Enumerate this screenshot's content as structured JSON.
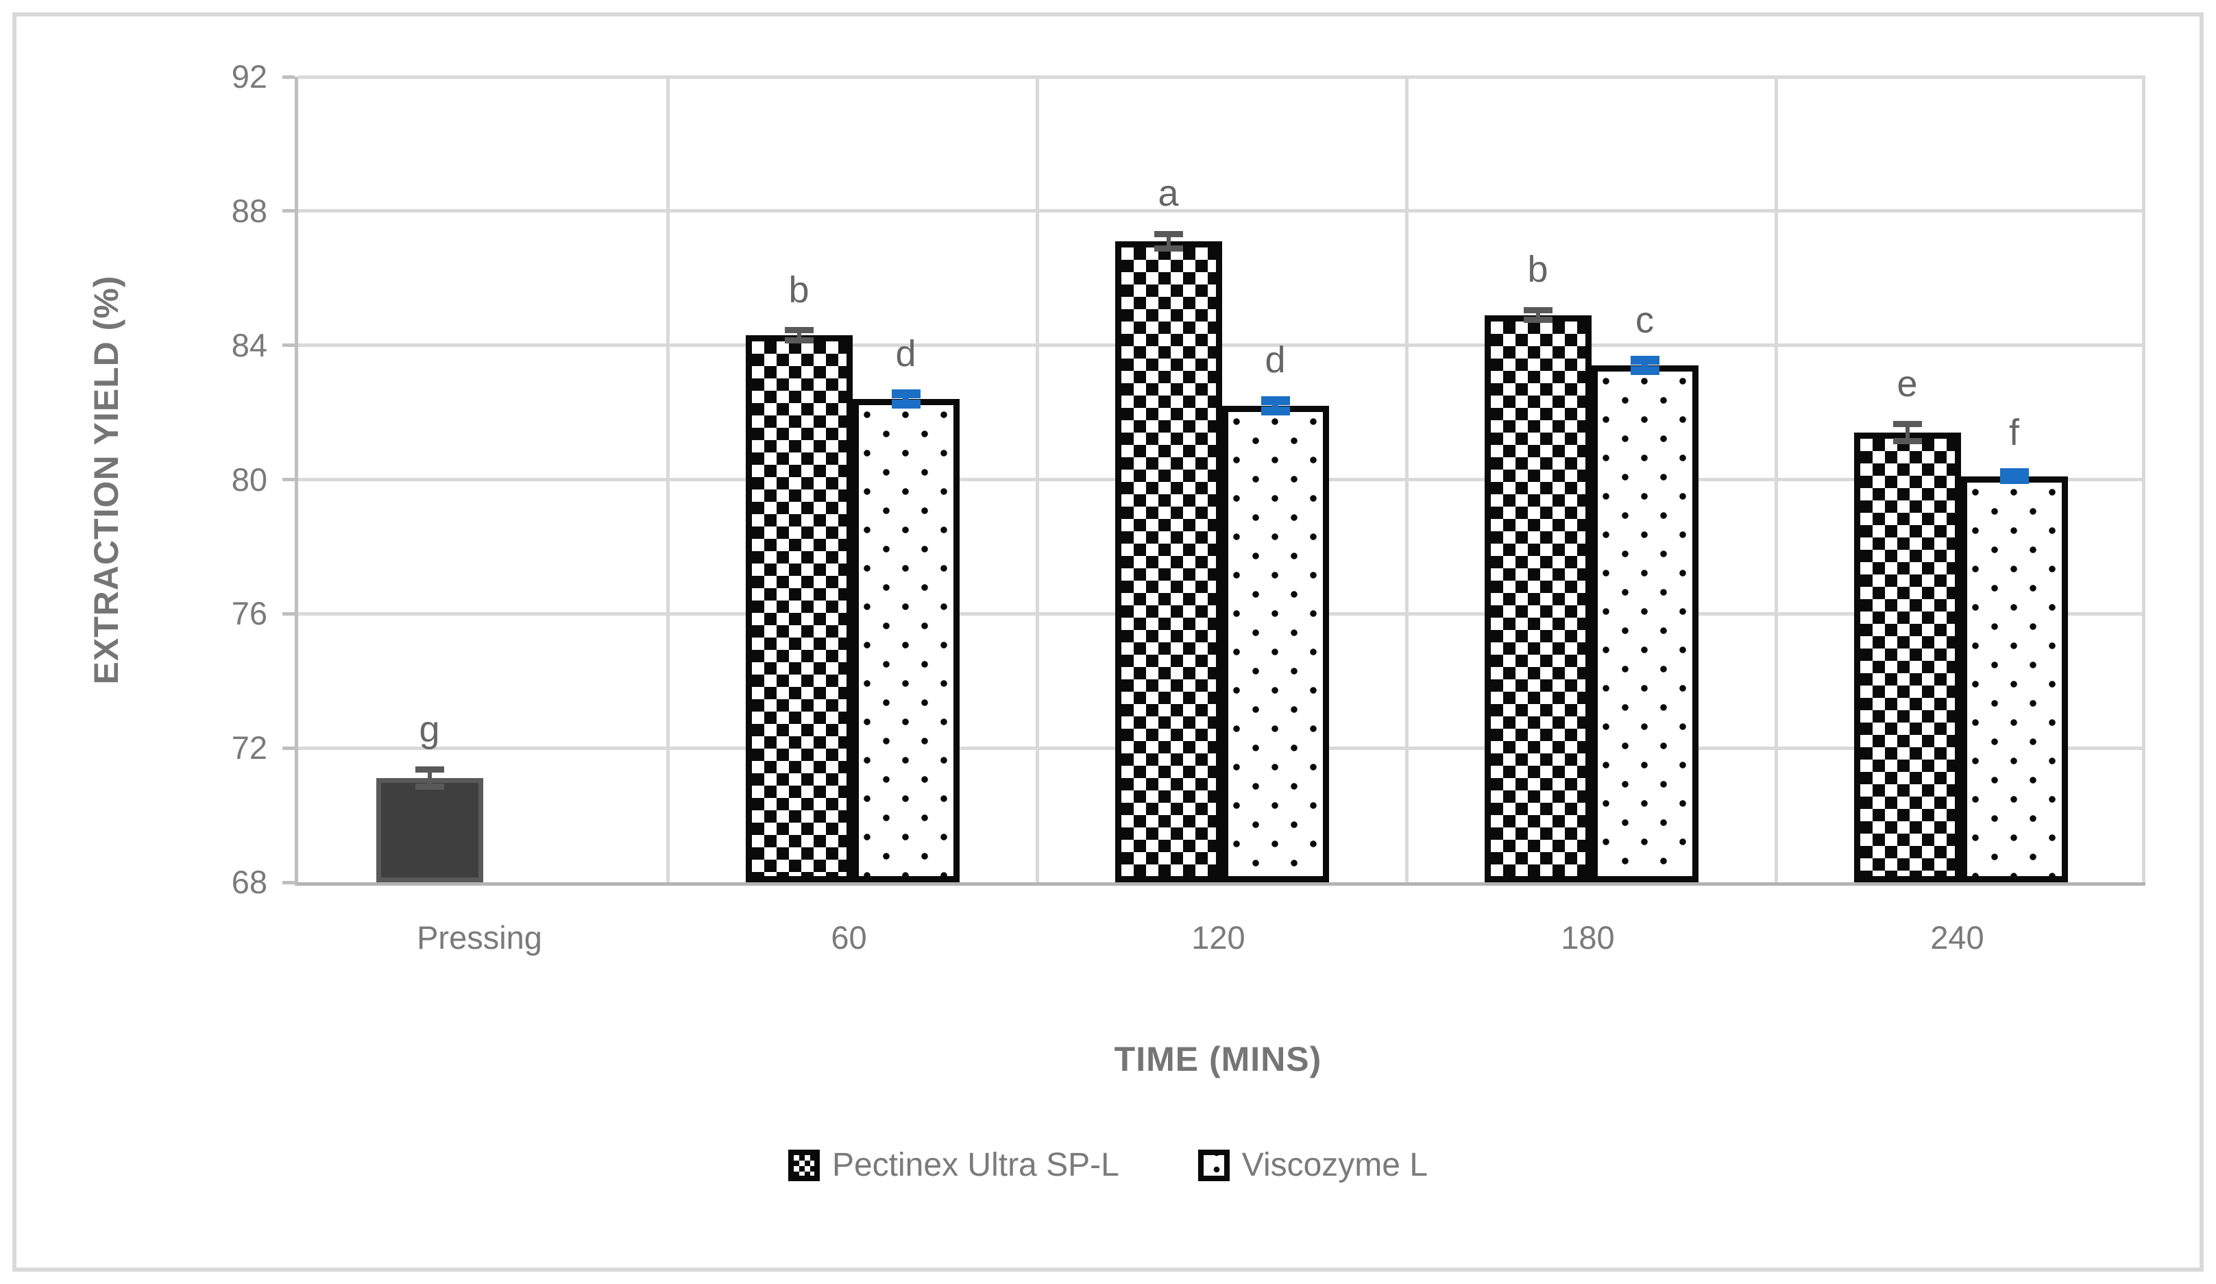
{
  "chart_data": {
    "type": "bar",
    "xlabel": "TIME (MINS)",
    "ylabel": "EXTRACTION YIELD (%)",
    "ylim": [
      68,
      92
    ],
    "ytick_step": 4,
    "yticks": [
      68,
      72,
      76,
      80,
      84,
      88,
      92
    ],
    "categories": [
      "Pressing",
      "60",
      "120",
      "180",
      "240"
    ],
    "grid": true,
    "legend_position": "bottom",
    "legend": [
      "Pectinex Ultra SP-L",
      "Viscozyme L"
    ],
    "series": [
      {
        "name": "Pressing",
        "pattern": "solid",
        "fill": "#3F3F3F",
        "error_color": "#595959",
        "in_legend": false,
        "points": [
          {
            "category": "Pressing",
            "value": 71.1,
            "error": 0.25,
            "letter": "g"
          }
        ]
      },
      {
        "name": "Pectinex Ultra SP-L",
        "pattern": "crosshatch",
        "fill": "#FFFFFF",
        "error_color": "#595959",
        "in_legend": true,
        "points": [
          {
            "category": "60",
            "value": 84.3,
            "error": 0.15,
            "letter": "b"
          },
          {
            "category": "120",
            "value": 87.1,
            "error": 0.22,
            "letter": "a"
          },
          {
            "category": "180",
            "value": 84.9,
            "error": 0.15,
            "letter": "b"
          },
          {
            "category": "240",
            "value": 81.4,
            "error": 0.25,
            "letter": "e"
          }
        ]
      },
      {
        "name": "Viscozyme L",
        "pattern": "dots",
        "fill": "#FFFFFF",
        "error_color": "#1B6FC4",
        "in_legend": true,
        "points": [
          {
            "category": "60",
            "value": 82.4,
            "error": 0.15,
            "letter": "d"
          },
          {
            "category": "120",
            "value": 82.2,
            "error": 0.15,
            "letter": "d"
          },
          {
            "category": "180",
            "value": 83.4,
            "error": 0.15,
            "letter": "c"
          },
          {
            "category": "240",
            "value": 80.1,
            "error": 0.1,
            "letter": "f"
          }
        ]
      }
    ],
    "colors": {
      "gridline": "#D9D9D9",
      "axis_line": "#BFBFBF",
      "tick_text": "#7A7A7A",
      "axis_title_text": "#757575",
      "letter_text": "#666666",
      "gray_error": "#595959",
      "blue_error": "#1B6FC4",
      "solid_bar": "#3F3F3F",
      "pattern_ink": "#0A0A0A"
    }
  }
}
